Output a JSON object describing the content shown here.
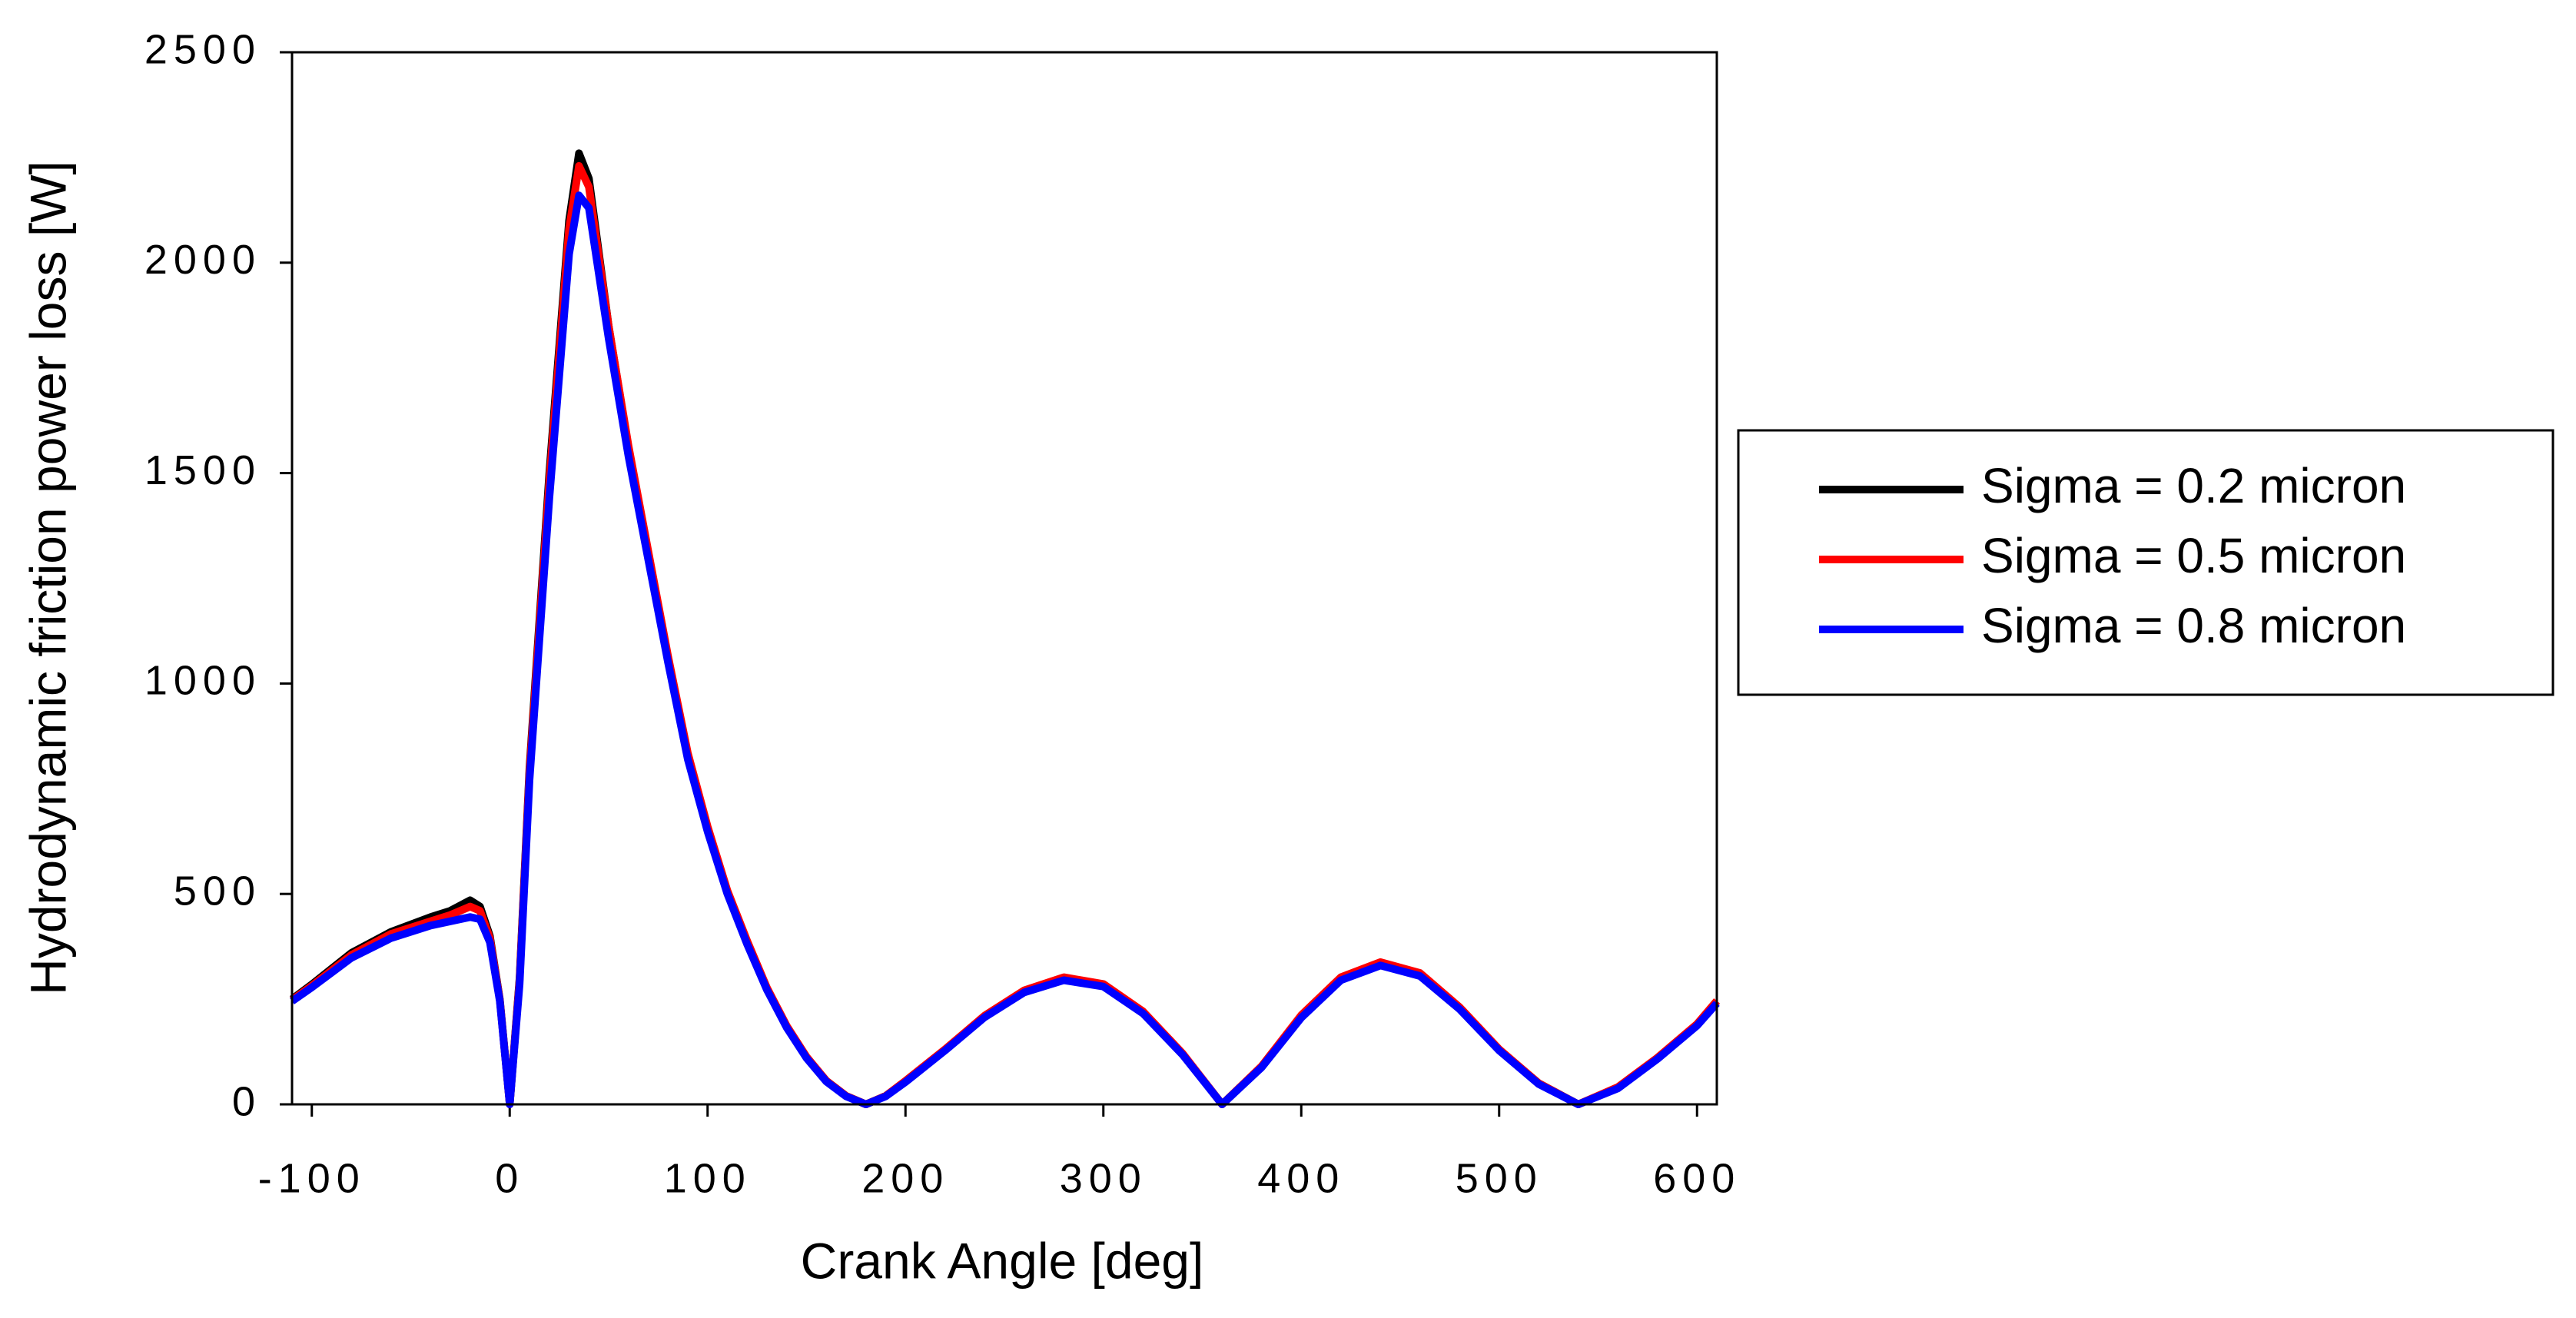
{
  "chart_data": {
    "type": "line",
    "x_label": "Crank Angle [deg]",
    "y_label": "Hydrodynamic friction power loss [W]",
    "x": [
      -110,
      -100,
      -80,
      -60,
      -40,
      -30,
      -20,
      -15,
      -10,
      -5,
      0,
      5,
      10,
      20,
      30,
      35,
      40,
      50,
      60,
      70,
      80,
      90,
      100,
      110,
      120,
      130,
      140,
      150,
      160,
      170,
      180,
      190,
      200,
      220,
      240,
      260,
      280,
      300,
      320,
      340,
      360,
      380,
      400,
      420,
      440,
      460,
      480,
      500,
      520,
      540,
      560,
      580,
      600,
      610
    ],
    "series": [
      {
        "name": "Sigma = 0.2 micron",
        "color": "#000000",
        "values": [
          250,
          285,
          360,
          410,
          445,
          460,
          485,
          470,
          400,
          250,
          0,
          300,
          800,
          1500,
          2100,
          2260,
          2200,
          1850,
          1560,
          1310,
          1060,
          830,
          655,
          505,
          385,
          275,
          185,
          112,
          56,
          20,
          0,
          20,
          55,
          130,
          210,
          270,
          300,
          285,
          220,
          120,
          0,
          90,
          210,
          300,
          335,
          310,
          230,
          130,
          50,
          0,
          40,
          110,
          190,
          245
        ]
      },
      {
        "name": "Sigma = 0.5 micron",
        "color": "#ff0000",
        "values": [
          248,
          282,
          355,
          405,
          435,
          450,
          470,
          460,
          395,
          248,
          0,
          295,
          790,
          1480,
          2080,
          2230,
          2180,
          1850,
          1565,
          1315,
          1065,
          835,
          660,
          508,
          388,
          277,
          186,
          113,
          56,
          20,
          0,
          20,
          56,
          131,
          211,
          271,
          302,
          286,
          221,
          121,
          0,
          91,
          212,
          302,
          338,
          312,
          231,
          131,
          50,
          0,
          41,
          111,
          191,
          246
        ]
      },
      {
        "name": "Sigma = 0.8 micron",
        "color": "#0000ff",
        "values": [
          245,
          278,
          348,
          395,
          425,
          435,
          445,
          440,
          385,
          245,
          0,
          285,
          770,
          1440,
          2020,
          2160,
          2130,
          1820,
          1540,
          1295,
          1050,
          820,
          648,
          500,
          380,
          272,
          182,
          110,
          54,
          19,
          0,
          19,
          53,
          128,
          207,
          266,
          295,
          280,
          216,
          118,
          0,
          88,
          206,
          295,
          330,
          305,
          226,
          128,
          48,
          0,
          38,
          108,
          187,
          240
        ]
      }
    ],
    "xlim": [
      -110,
      610
    ],
    "xticks": [
      -100,
      0,
      100,
      200,
      300,
      400,
      500,
      600
    ],
    "ylim": [
      0,
      2500
    ],
    "yticks": [
      0,
      500,
      1000,
      1500,
      2000,
      2500
    ],
    "legend": "right"
  }
}
